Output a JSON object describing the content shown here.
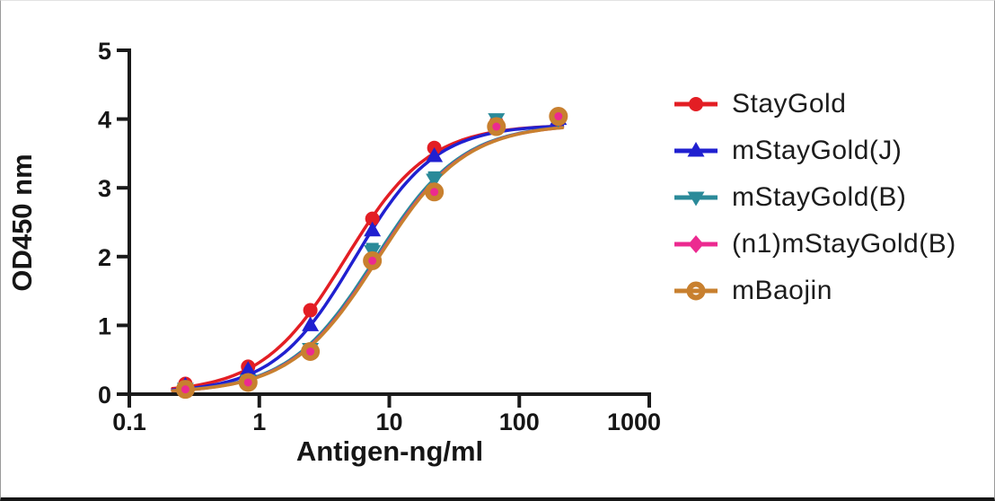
{
  "chart_data": {
    "type": "scatter",
    "title": "",
    "xlabel": "Antigen-ng/ml",
    "ylabel": "OD450 nm",
    "x_scale": "log10",
    "xlim": [
      0.1,
      1000
    ],
    "ylim": [
      0,
      5
    ],
    "x_tick_values": [
      0.1,
      1,
      10,
      100,
      1000
    ],
    "x_tick_labels": [
      "0.1",
      "1",
      "10",
      "100",
      "1000"
    ],
    "y_tick_values": [
      0,
      1,
      2,
      3,
      4,
      5
    ],
    "y_tick_labels": [
      "0",
      "1",
      "2",
      "3",
      "4",
      "5"
    ],
    "grid": false,
    "legend_position": "right",
    "axis_color": "#1a1a1a",
    "x": [
      0.27,
      0.82,
      2.47,
      7.41,
      22.2,
      66.7,
      200
    ],
    "series": [
      {
        "name": "StayGold",
        "color": "#e31e24",
        "marker": "circle",
        "values": [
          0.15,
          0.4,
          1.22,
          2.55,
          3.58,
          3.95,
          4.0
        ],
        "errors": [
          0,
          0,
          0,
          0,
          0,
          0,
          0
        ],
        "fit": {
          "bottom": 0.02,
          "top": 3.92,
          "ec50": 4.6,
          "hill": 1.35
        }
      },
      {
        "name": "mStayGold(J)",
        "color": "#2020d0",
        "marker": "triangle-up",
        "values": [
          0.12,
          0.35,
          1.0,
          2.38,
          3.46,
          3.92,
          4.0
        ],
        "errors": [
          0,
          0,
          0,
          0,
          0,
          0,
          0
        ],
        "fit": {
          "bottom": 0.02,
          "top": 3.92,
          "ec50": 5.4,
          "hill": 1.4
        }
      },
      {
        "name": "mStayGold(B)",
        "color": "#2a8a99",
        "marker": "triangle-down",
        "values": [
          0.08,
          0.2,
          0.66,
          2.08,
          3.12,
          4.0,
          4.0
        ],
        "errors": [
          0,
          0,
          0,
          0.1,
          0.1,
          0.05,
          0
        ],
        "fit": {
          "bottom": 0.015,
          "top": 3.93,
          "ec50": 7.8,
          "hill": 1.3
        }
      },
      {
        "name": "(n1)mStayGold(B)",
        "color": "#ec2a90",
        "marker": "diamond",
        "values": [
          0.07,
          0.18,
          0.62,
          1.95,
          2.95,
          3.9,
          4.03
        ],
        "errors": [
          0,
          0,
          0,
          0,
          0,
          0,
          0
        ],
        "fit": {
          "bottom": 0.015,
          "top": 3.93,
          "ec50": 8.1,
          "hill": 1.3
        }
      },
      {
        "name": "mBaojin",
        "color": "#c8802f",
        "marker": "open-circle",
        "values": [
          0.07,
          0.17,
          0.62,
          1.94,
          2.94,
          3.89,
          4.04
        ],
        "errors": [
          0,
          0,
          0,
          0,
          0,
          0,
          0
        ],
        "fit": {
          "bottom": 0.015,
          "top": 3.93,
          "ec50": 8.2,
          "hill": 1.3
        }
      }
    ]
  }
}
